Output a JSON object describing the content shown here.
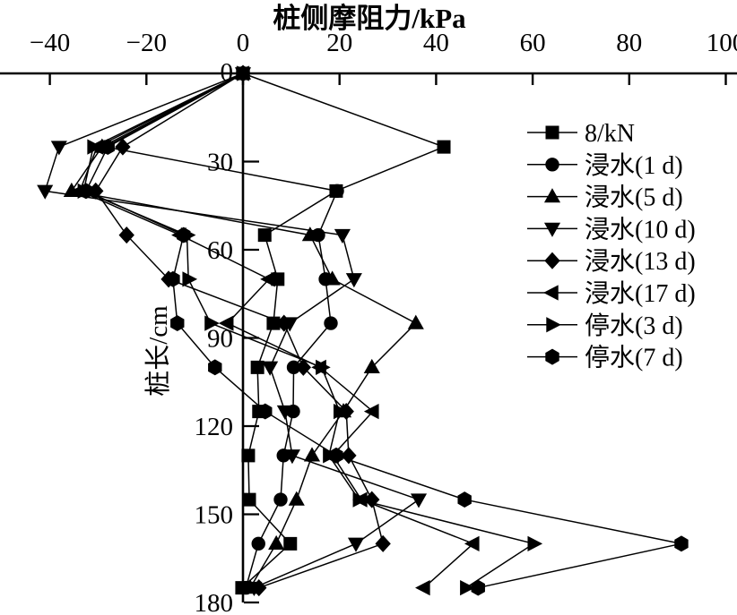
{
  "page": {
    "background": "#ffffff",
    "ink": "#000000"
  },
  "chart_data": {
    "type": "line",
    "title": "桩侧摩阻力/kPa",
    "xlabel": "桩侧摩阻力/kPa",
    "ylabel": "桩长/cm",
    "x_unit": "kPa",
    "y_unit": "cm",
    "xlim": [
      -50,
      102
    ],
    "ylim": [
      0,
      184
    ],
    "y_inverted": true,
    "grid": false,
    "legend_position": "right-inside",
    "x_ticks": [
      -40,
      -20,
      0,
      20,
      40,
      60,
      80,
      100
    ],
    "x_tick_labels": [
      "−40",
      "−20",
      "0",
      "20",
      "40",
      "60",
      "80",
      "100"
    ],
    "y_ticks": [
      0,
      30,
      60,
      90,
      120,
      150,
      180
    ],
    "y_tick_labels": [
      "0",
      "30",
      "60",
      "90",
      "120",
      "150",
      "180"
    ],
    "depths_cm": [
      0,
      25,
      40,
      55,
      70,
      85,
      100,
      115,
      130,
      145,
      160,
      175
    ],
    "series": [
      {
        "name": "8/kN",
        "marker": "square",
        "color": "#000000",
        "values": [
          0,
          41.6,
          19.3,
          4.5,
          7.2,
          6.3,
          3.0,
          3.3,
          1.1,
          1.3,
          9.8,
          -0.2
        ]
      },
      {
        "name": "浸水(1 d)",
        "marker": "circle",
        "color": "#000000",
        "values": [
          0,
          -28.5,
          19.5,
          15.6,
          17.1,
          18.2,
          10.5,
          10.4,
          8.4,
          7.8,
          3.2,
          0.6
        ]
      },
      {
        "name": "浸水(5 d)",
        "marker": "triangle-up",
        "color": "#000000",
        "values": [
          0,
          -29.2,
          -35.5,
          13.9,
          18.5,
          35.8,
          26.7,
          20.8,
          14.3,
          11.1,
          6.9,
          1.5
        ]
      },
      {
        "name": "浸水(10 d)",
        "marker": "triangle-down",
        "color": "#000000",
        "values": [
          0,
          -38.1,
          -41.0,
          20.6,
          23.0,
          9.7,
          5.6,
          8.7,
          10.2,
          36.4,
          23.4,
          2.3
        ]
      },
      {
        "name": "浸水(13 d)",
        "marker": "diamond",
        "color": "#000000",
        "values": [
          0,
          -24.9,
          -30.5,
          -24.1,
          -15.4,
          8.5,
          12.5,
          21.4,
          21.9,
          26.7,
          29.0,
          3.3
        ]
      },
      {
        "name": "浸水(17 d)",
        "marker": "triangle-left",
        "color": "#000000",
        "values": [
          0,
          -30.2,
          -33.8,
          -13.0,
          5.4,
          -3.2,
          16.0,
          26.9,
          18.6,
          24.5,
          47.7,
          37.5
        ]
      },
      {
        "name": "停水(3 d)",
        "marker": "triangle-right",
        "color": "#000000",
        "values": [
          0,
          -31.0,
          -33.0,
          -11.6,
          -11.3,
          -6.7,
          16.3,
          20.0,
          17.8,
          24.0,
          60.2,
          46.2
        ]
      },
      {
        "name": "停水(7 d)",
        "marker": "hexagon",
        "color": "#000000",
        "values": [
          0,
          -28.0,
          -32.5,
          -12.3,
          -14.5,
          -13.6,
          -5.8,
          4.6,
          19.3,
          45.9,
          90.8,
          48.7
        ]
      }
    ]
  },
  "legend": {
    "items": [
      "8/kN",
      "浸水(1 d)",
      "浸水(5 d)",
      "浸水(10 d)",
      "浸水(13 d)",
      "浸水(17 d)",
      "停水(3 d)",
      "停水(7 d)"
    ]
  }
}
